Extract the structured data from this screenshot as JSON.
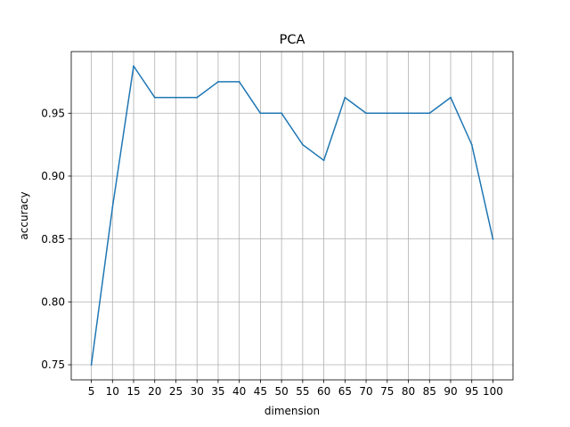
{
  "chart_data": {
    "type": "line",
    "title": "PCA",
    "xlabel": "dimension",
    "ylabel": "accuracy",
    "x": [
      5,
      10,
      15,
      20,
      25,
      30,
      35,
      40,
      45,
      50,
      55,
      60,
      65,
      70,
      75,
      80,
      85,
      90,
      95,
      100
    ],
    "series": [
      {
        "name": "accuracy",
        "color": "#1f77b4",
        "values": [
          0.75,
          0.875,
          0.9875,
          0.9625,
          0.9625,
          0.9625,
          0.975,
          0.975,
          0.95,
          0.95,
          0.925,
          0.9125,
          0.9625,
          0.95,
          0.95,
          0.95,
          0.95,
          0.9625,
          0.925,
          0.85
        ]
      }
    ],
    "xticks": [
      "5",
      "10",
      "15",
      "20",
      "25",
      "30",
      "35",
      "40",
      "45",
      "50",
      "55",
      "60",
      "65",
      "70",
      "75",
      "80",
      "85",
      "90",
      "95",
      "100"
    ],
    "yticks": [
      0.75,
      0.8,
      0.85,
      0.9,
      0.95
    ],
    "ytick_labels": [
      "0.75",
      "0.80",
      "0.85",
      "0.90",
      "0.95"
    ],
    "xlim": [
      0.25,
      104.75
    ],
    "ylim": [
      0.738,
      0.999
    ],
    "grid": true,
    "legend": "none"
  }
}
